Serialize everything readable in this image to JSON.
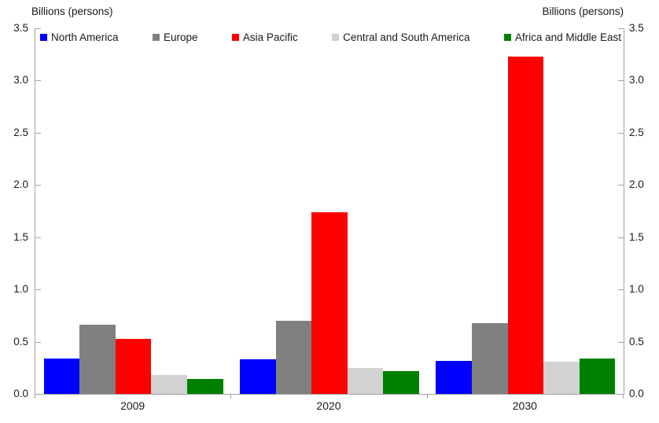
{
  "chart_data": {
    "type": "bar",
    "title_left": "Billions (persons)",
    "title_right": "Billions (persons)",
    "categories": [
      "2009",
      "2020",
      "2030"
    ],
    "series": [
      {
        "name": "North America",
        "color": "#0000fe",
        "values": [
          0.34,
          0.33,
          0.32
        ]
      },
      {
        "name": "Europe",
        "color": "#808080",
        "values": [
          0.66,
          0.7,
          0.68
        ]
      },
      {
        "name": "Asia Pacific",
        "color": "#fe0000",
        "values": [
          0.53,
          1.74,
          3.23
        ]
      },
      {
        "name": "Central and South America",
        "color": "#d2d2d2",
        "values": [
          0.18,
          0.25,
          0.31
        ]
      },
      {
        "name": "Africa and Middle East",
        "color": "#008000",
        "values": [
          0.14,
          0.22,
          0.34
        ]
      }
    ],
    "ylim": [
      0,
      3.5
    ],
    "ytick_labels": [
      "0.0",
      "0.5",
      "1.0",
      "1.5",
      "2.0",
      "2.5",
      "3.0",
      "3.5"
    ],
    "y_axis_sides": "both",
    "legend_position": "top-inside",
    "grid": false
  }
}
